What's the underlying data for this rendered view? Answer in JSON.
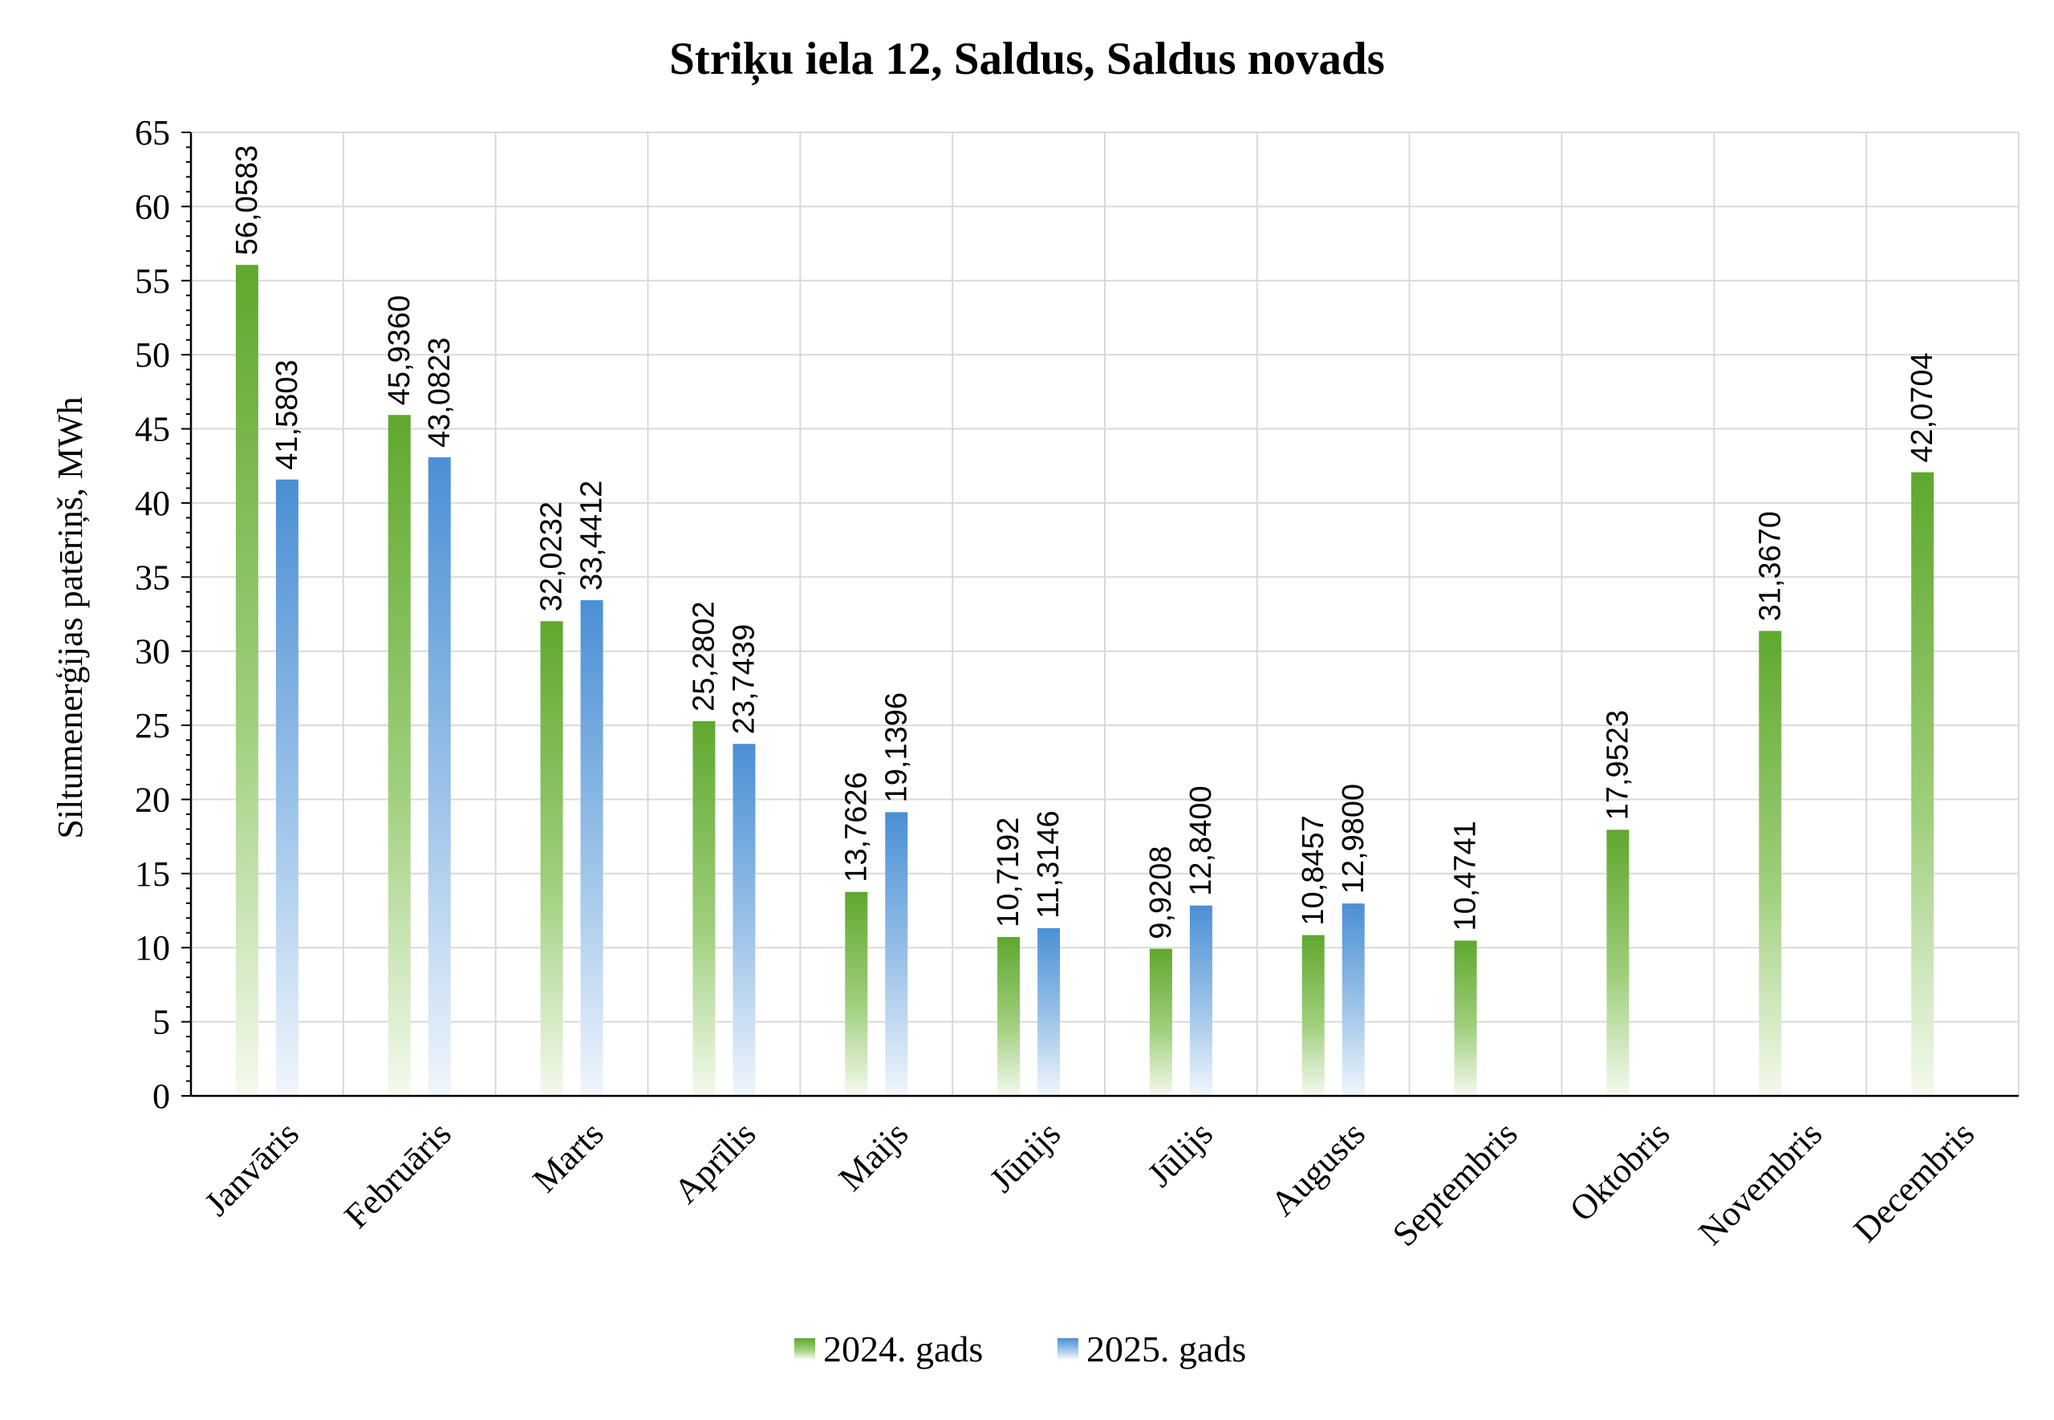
{
  "chart_data": {
    "type": "bar",
    "title": "Striķu iela 12, Saldus, Saldus novads",
    "xlabel": "",
    "ylabel": "Siltumenerģijas patēriņš, MWh",
    "ylim": [
      0,
      65
    ],
    "ytick_step": 5,
    "grid": true,
    "legend_position": "bottom",
    "categories": [
      "Janvāris",
      "Februāris",
      "Marts",
      "Aprīlis",
      "Maijs",
      "Jūnijs",
      "Jūlijs",
      "Augusts",
      "Septembris",
      "Oktobris",
      "Novembris",
      "Decembris"
    ],
    "series": [
      {
        "name": "2024. gads",
        "color": "#6aaa3a",
        "values": [
          56.0583,
          45.936,
          32.0232,
          25.2802,
          13.7626,
          10.7192,
          9.9208,
          10.8457,
          10.4741,
          17.9523,
          31.367,
          42.0704
        ],
        "labels": [
          "56,0583",
          "45,9360",
          "32,0232",
          "25,2802",
          "13,7626",
          "10,7192",
          "9,9208",
          "10,8457",
          "10,4741",
          "17,9523",
          "31,3670",
          "42,0704"
        ]
      },
      {
        "name": "2025. gads",
        "color": "#4a8fd4",
        "values": [
          41.5803,
          43.0823,
          33.4412,
          23.7439,
          19.1396,
          11.3146,
          12.84,
          12.98,
          null,
          null,
          null,
          null
        ],
        "labels": [
          "41,5803",
          "43,0823",
          "33,4412",
          "23,7439",
          "19,1396",
          "11,3146",
          "12,8400",
          "12,9800",
          null,
          null,
          null,
          null
        ]
      }
    ]
  }
}
